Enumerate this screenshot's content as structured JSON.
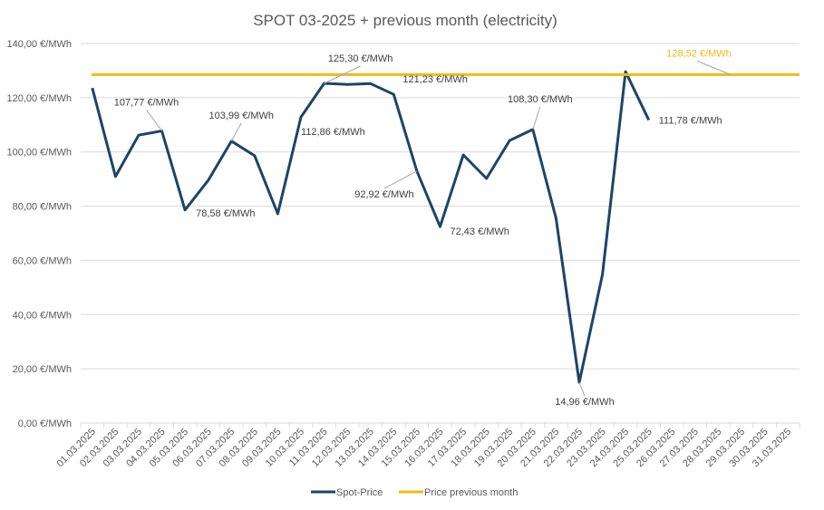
{
  "chart_data": {
    "type": "line",
    "title": "SPOT 03-2025 + previous month (electricity)",
    "xlabel": "",
    "ylabel": "",
    "ylim": [
      0,
      140
    ],
    "ytick_step": 20,
    "y_tick_labels": [
      "0,00 €/MWh",
      "20,00 €/MWh",
      "40,00 €/MWh",
      "60,00 €/MWh",
      "80,00 €/MWh",
      "100,00 €/MWh",
      "120,00 €/MWh",
      "140,00 €/MWh"
    ],
    "grid": true,
    "legend_position": "bottom",
    "categories": [
      "01.03.2025",
      "02.03.2025",
      "03.03.2025",
      "04.03.2025",
      "05.03.2025",
      "06.03.2025",
      "07.03.2025",
      "08.03.2025",
      "09.03.2025",
      "10.03.2025",
      "11.03.2025",
      "12.03.2025",
      "13.03.2025",
      "14.03.2025",
      "15.03.2025",
      "16.03.2025",
      "17.03.2025",
      "18.03.2025",
      "19.03.2025",
      "20.03.2025",
      "21.03.2025",
      "22.03.2025",
      "23.03.2025",
      "24.03.2025",
      "25.03.2025",
      "26.03.2025",
      "27.03.2025",
      "28.03.2025",
      "29.03.2025",
      "30.03.2025",
      "31.03.2025"
    ],
    "series": [
      {
        "name": "Spot-Price",
        "color": "#1c4566",
        "values": [
          123.6,
          90.9,
          106.2,
          107.77,
          78.58,
          89.5,
          103.99,
          98.6,
          77.2,
          112.86,
          125.3,
          124.9,
          125.2,
          121.23,
          92.92,
          72.43,
          98.9,
          90.2,
          104.2,
          108.3,
          75.5,
          14.96,
          54.8,
          129.6,
          111.78,
          null,
          null,
          null,
          null,
          null,
          null
        ],
        "labels": [
          {
            "index": 3,
            "text": "107,77 €/MWh"
          },
          {
            "index": 4,
            "text": "78,58 €/MWh"
          },
          {
            "index": 6,
            "text": "103,99 €/MWh"
          },
          {
            "index": 9,
            "text": "112,86 €/MWh"
          },
          {
            "index": 10,
            "text": "125,30 €/MWh"
          },
          {
            "index": 13,
            "text": "121,23 €/MWh"
          },
          {
            "index": 14,
            "text": "92,92 €/MWh"
          },
          {
            "index": 15,
            "text": "72,43 €/MWh"
          },
          {
            "index": 19,
            "text": "108,30 €/MWh"
          },
          {
            "index": 21,
            "text": "14,96 €/MWh"
          },
          {
            "index": 24,
            "text": "111,78 €/MWh"
          }
        ]
      },
      {
        "name": "Price previous month",
        "color": "#f4b915",
        "values": [
          128.52,
          128.52,
          128.52,
          128.52,
          128.52,
          128.52,
          128.52,
          128.52,
          128.52,
          128.52,
          128.52,
          128.52,
          128.52,
          128.52,
          128.52,
          128.52,
          128.52,
          128.52,
          128.52,
          128.52,
          128.52,
          128.52,
          128.52,
          128.52,
          128.52,
          128.52,
          128.52,
          128.52,
          128.52,
          128.52,
          128.52
        ],
        "labels": [
          {
            "index": 30,
            "text": "128,52 €/MWh"
          }
        ]
      }
    ]
  }
}
